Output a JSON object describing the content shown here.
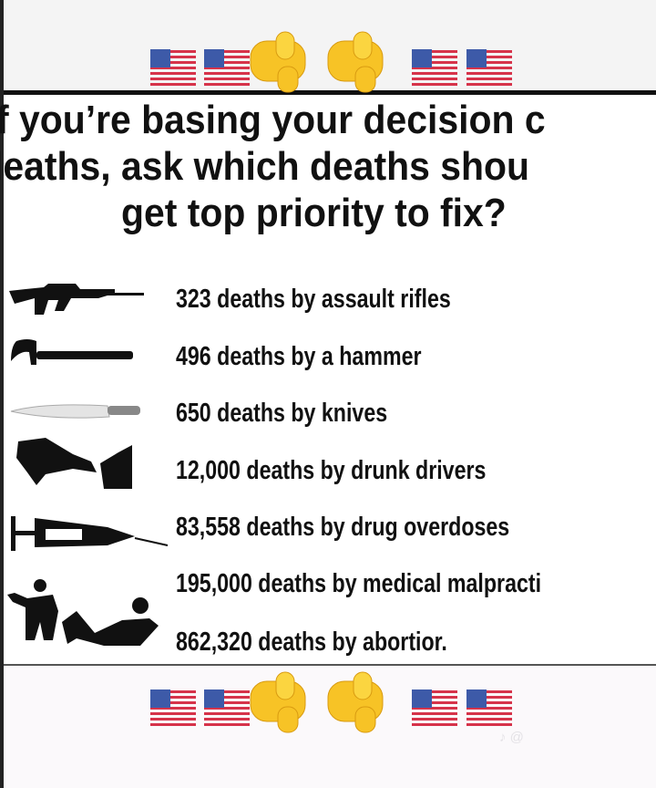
{
  "decor": {
    "top_row": [
      "flag-us",
      "flag-us",
      "pointing-hand",
      "pointing-hand",
      "flag-us",
      "flag-us"
    ],
    "bottom_row": [
      "flag-us",
      "flag-us",
      "pointing-hand",
      "pointing-hand",
      "flag-us",
      "flag-us"
    ],
    "colors": {
      "hand": "#f7c326",
      "flag_red": "#d6334a",
      "flag_blue": "#3d5aa8",
      "text": "#111111"
    }
  },
  "title": {
    "lines": [
      "f you’re basing your decision c",
      "leaths, ask which deaths shou",
      "get top priority to fix?"
    ]
  },
  "items": [
    {
      "icon": "assault-rifle-icon",
      "text": "323 deaths by assault rifles"
    },
    {
      "icon": "hammer-icon",
      "text": "496 deaths by a hammer"
    },
    {
      "icon": "knife-icon",
      "text": "650 deaths by knives"
    },
    {
      "icon": "drunk-driving-icon",
      "text": "12,000 deaths by drunk drivers"
    },
    {
      "icon": "syringe-icon",
      "text": "83,558 deaths by drug overdoses"
    },
    {
      "icon": "doctor-patient-icon",
      "text": "195,000 deaths by medical malpracti"
    },
    {
      "icon": "abortion-icon",
      "text": "862,320 deaths by abortior."
    }
  ]
}
